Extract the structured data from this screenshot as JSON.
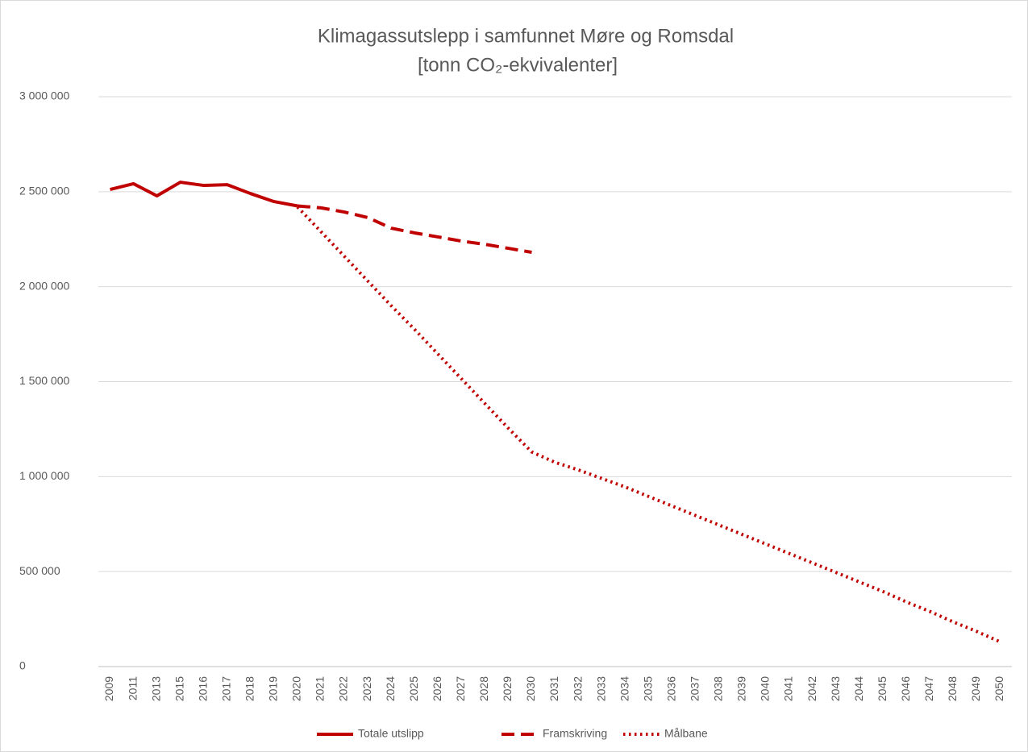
{
  "chart_data": {
    "type": "line",
    "title": "Klimagassutslepp i samfunnet Møre og Romsdal",
    "subtitle": "[tonn CO₂-ekvivalenter]",
    "categories": [
      "2009",
      "2011",
      "2013",
      "2015",
      "2016",
      "2017",
      "2018",
      "2019",
      "2020",
      "2021",
      "2022",
      "2023",
      "2024",
      "2025",
      "2026",
      "2027",
      "2028",
      "2029",
      "2030",
      "2031",
      "2032",
      "2033",
      "2034",
      "2035",
      "2036",
      "2037",
      "2038",
      "2039",
      "2040",
      "2041",
      "2042",
      "2043",
      "2044",
      "2045",
      "2046",
      "2047",
      "2048",
      "2049",
      "2050"
    ],
    "series": [
      {
        "name": "Totale utslipp",
        "color": "#c00000",
        "dash": "solid",
        "values": [
          2512000,
          2542000,
          2478000,
          2550000,
          2533000,
          2537000,
          2490000,
          2448000,
          2425000,
          null,
          null,
          null,
          null,
          null,
          null,
          null,
          null,
          null,
          null,
          null,
          null,
          null,
          null,
          null,
          null,
          null,
          null,
          null,
          null,
          null,
          null,
          null,
          null,
          null,
          null,
          null,
          null,
          null,
          null
        ]
      },
      {
        "name": "Framskriving",
        "color": "#c00000",
        "dash": "dashed",
        "values": [
          null,
          null,
          null,
          null,
          null,
          null,
          null,
          null,
          2425000,
          2415000,
          2393000,
          2364000,
          2308000,
          2283000,
          2262000,
          2240000,
          2223000,
          2202000,
          2181000,
          null,
          null,
          null,
          null,
          null,
          null,
          null,
          null,
          null,
          null,
          null,
          null,
          null,
          null,
          null,
          null,
          null,
          null,
          null,
          null
        ]
      },
      {
        "name": "Målbane",
        "color": "#c00000",
        "dash": "dotted",
        "values": [
          null,
          null,
          null,
          null,
          null,
          null,
          null,
          null,
          2420000,
          2290000,
          2160000,
          2030000,
          1900000,
          1775000,
          1645000,
          1515000,
          1385000,
          1255000,
          1130000,
          1075000,
          1035000,
          990000,
          945000,
          895000,
          845000,
          795000,
          745000,
          695000,
          645000,
          595000,
          545000,
          495000,
          445000,
          395000,
          340000,
          290000,
          235000,
          185000,
          130000
        ]
      }
    ],
    "ylim": [
      0,
      3000000
    ],
    "yticks": [
      {
        "value": 0,
        "label": "0"
      },
      {
        "value": 500000,
        "label": "500 000"
      },
      {
        "value": 1000000,
        "label": "1 000 000"
      },
      {
        "value": 1500000,
        "label": "1 500 000"
      },
      {
        "value": 2000000,
        "label": "2 000 000"
      },
      {
        "value": 2500000,
        "label": "2 500 000"
      },
      {
        "value": 3000000,
        "label": "3 000 000"
      }
    ],
    "grid": true,
    "legend": "bottom"
  }
}
